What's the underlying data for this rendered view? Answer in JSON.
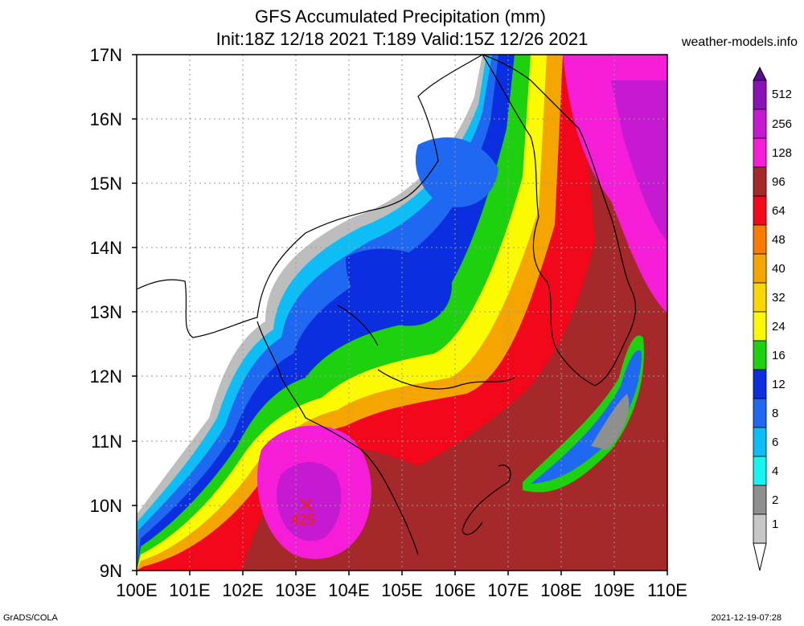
{
  "title_line1": "GFS Accumulated Precipitation (mm)",
  "title_line2": "Init:18Z 12/18 2021 T:189 Valid:15Z 12/26 2021",
  "source": "weather-models.info",
  "footer_left": "GrADS/COLA",
  "footer_right": "2021-12-19-07:28",
  "lat_labels": [
    "17N",
    "16N",
    "15N",
    "14N",
    "13N",
    "12N",
    "11N",
    "10N",
    "9N"
  ],
  "lon_labels": [
    "100E",
    "101E",
    "102E",
    "103E",
    "104E",
    "105E",
    "106E",
    "107E",
    "108E",
    "109E",
    "110E"
  ],
  "legend": {
    "levels": [
      "512",
      "256",
      "128",
      "96",
      "64",
      "48",
      "40",
      "32",
      "24",
      "16",
      "12",
      "8",
      "6",
      "4",
      "2",
      "1"
    ],
    "colors": [
      "#5a0c8e",
      "#8a11b5",
      "#c51ad1",
      "#f51dd7",
      "#a5282a",
      "#f2071b",
      "#fb7a00",
      "#f5a500",
      "#fad600",
      "#fbfa00",
      "#1ed10f",
      "#0b2ee0",
      "#1f68f1",
      "#0dbdf5",
      "#16f5f0",
      "#8f8f8f",
      "#c7c7c7",
      "#ffffff"
    ]
  },
  "max_marker": {
    "value": "425",
    "lon": 103.2,
    "lat": 10.0
  },
  "map_extent": {
    "lon": [
      100,
      110
    ],
    "lat": [
      9,
      17
    ]
  }
}
